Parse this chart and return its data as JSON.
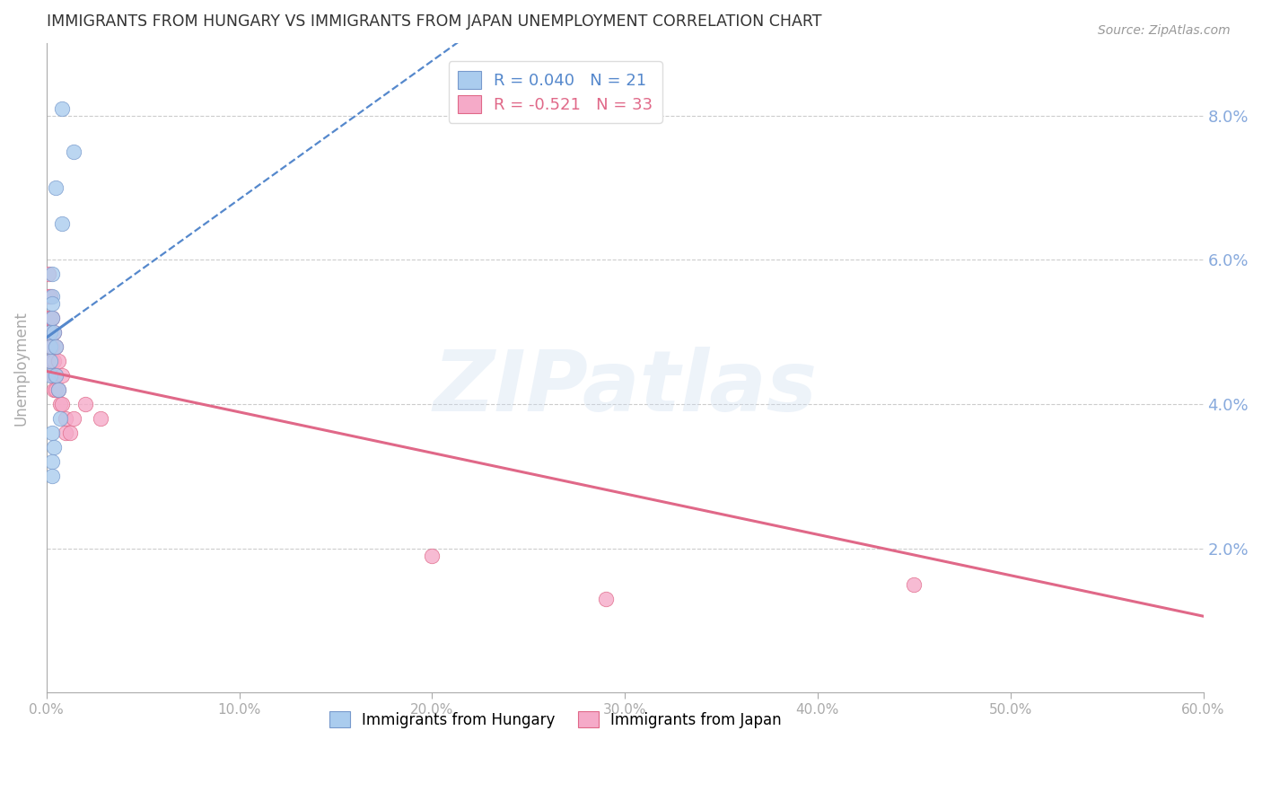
{
  "title": "IMMIGRANTS FROM HUNGARY VS IMMIGRANTS FROM JAPAN UNEMPLOYMENT CORRELATION CHART",
  "source": "Source: ZipAtlas.com",
  "ylabel": "Unemployment",
  "xlim": [
    0.0,
    0.6
  ],
  "ylim": [
    0.0,
    0.09
  ],
  "yticks": [
    0.02,
    0.04,
    0.06,
    0.08
  ],
  "ytick_labels": [
    "2.0%",
    "4.0%",
    "6.0%",
    "8.0%"
  ],
  "xticks": [
    0.0,
    0.1,
    0.2,
    0.3,
    0.4,
    0.5,
    0.6
  ],
  "xtick_labels": [
    "0.0%",
    "10.0%",
    "20.0%",
    "30.0%",
    "40.0%",
    "50.0%",
    "60.0%"
  ],
  "hungary_x": [
    0.008,
    0.014,
    0.005,
    0.008,
    0.003,
    0.003,
    0.002,
    0.002,
    0.002,
    0.002,
    0.003,
    0.003,
    0.004,
    0.005,
    0.005,
    0.006,
    0.007,
    0.003,
    0.004,
    0.003,
    0.003
  ],
  "hungary_y": [
    0.081,
    0.075,
    0.07,
    0.065,
    0.055,
    0.052,
    0.05,
    0.048,
    0.046,
    0.044,
    0.058,
    0.054,
    0.05,
    0.048,
    0.044,
    0.042,
    0.038,
    0.036,
    0.034,
    0.032,
    0.03
  ],
  "japan_x": [
    0.001,
    0.001,
    0.001,
    0.002,
    0.002,
    0.002,
    0.002,
    0.002,
    0.003,
    0.003,
    0.003,
    0.003,
    0.004,
    0.004,
    0.004,
    0.004,
    0.005,
    0.005,
    0.005,
    0.006,
    0.006,
    0.007,
    0.008,
    0.008,
    0.01,
    0.01,
    0.012,
    0.014,
    0.02,
    0.028,
    0.2,
    0.45,
    0.29
  ],
  "japan_y": [
    0.058,
    0.055,
    0.052,
    0.055,
    0.052,
    0.05,
    0.048,
    0.046,
    0.052,
    0.048,
    0.046,
    0.044,
    0.05,
    0.046,
    0.044,
    0.042,
    0.048,
    0.044,
    0.042,
    0.046,
    0.042,
    0.04,
    0.044,
    0.04,
    0.038,
    0.036,
    0.036,
    0.038,
    0.04,
    0.038,
    0.019,
    0.015,
    0.013
  ],
  "R_hungary": 0.04,
  "N_hungary": 21,
  "R_japan": -0.521,
  "N_japan": 33,
  "blue_dot_color": "#aaccee",
  "blue_edge_color": "#7799cc",
  "pink_dot_color": "#f5aac8",
  "pink_edge_color": "#e06888",
  "trendline_blue_color": "#5588cc",
  "trendline_pink_color": "#e06888",
  "watermark_text": "ZIPatlas",
  "watermark_color": "#ccddf0",
  "watermark_alpha": 0.35,
  "background_color": "#ffffff",
  "grid_color": "#cccccc",
  "axis_color": "#aaaaaa",
  "title_color": "#333333",
  "right_axis_color": "#88aadd",
  "source_color": "#999999",
  "legend_text_blue": "R = 0.040   N = 21",
  "legend_text_pink": "R = -0.521   N = 33",
  "legend_blue_color": "#5588cc",
  "legend_pink_color": "#e06888",
  "bottom_legend_hungary": "Immigrants from Hungary",
  "bottom_legend_japan": "Immigrants from Japan",
  "hungary_trendline_x_solid_end": 0.014,
  "hungary_trendline_x_start": 0.0,
  "hungary_trendline_x_end": 0.6,
  "japan_trendline_x_start": 0.0,
  "japan_trendline_x_end": 0.6
}
